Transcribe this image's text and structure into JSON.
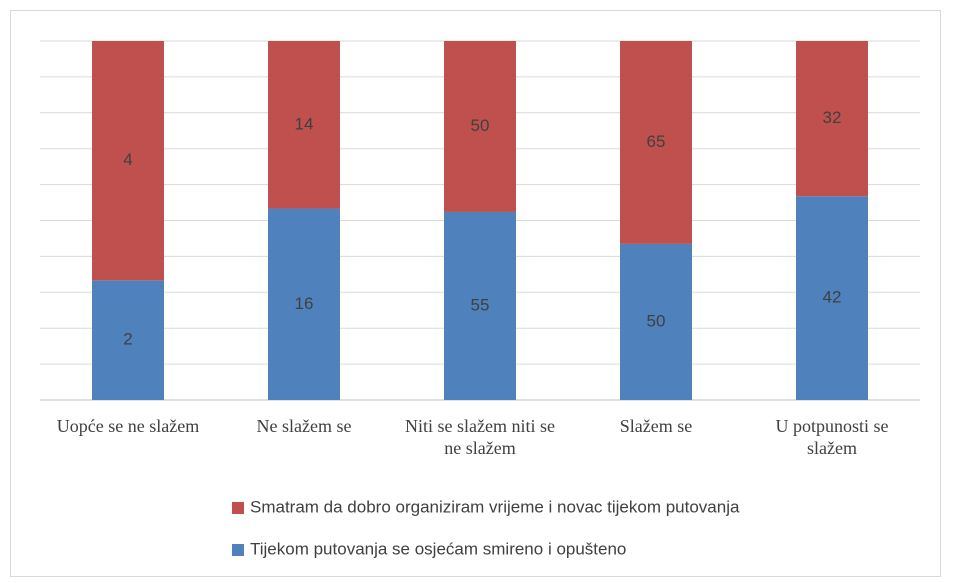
{
  "chart_data": {
    "type": "bar",
    "stacked": "percent",
    "categories": [
      "Uopće se ne slažem",
      "Ne slažem se",
      "Niti se slažem niti se ne slažem",
      "Slažem se",
      "U potpunosti se slažem"
    ],
    "series": [
      {
        "name": "Tijekom putovanja se osjećam smireno i opušteno",
        "color": "#4f81bd",
        "values": [
          2,
          16,
          55,
          50,
          42
        ]
      },
      {
        "name": "Smatram da dobro organiziram vrijeme i novac tijekom putovanja",
        "color": "#c0504d",
        "values": [
          4,
          14,
          50,
          65,
          32
        ]
      }
    ],
    "ylim": [
      0,
      100
    ],
    "yticks": [
      0,
      10,
      20,
      30,
      40,
      50,
      60,
      70,
      80,
      90,
      100
    ],
    "grid": true,
    "legend": "bottom"
  }
}
